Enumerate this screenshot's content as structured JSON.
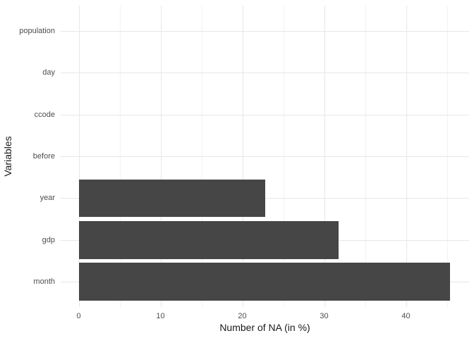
{
  "chart_data": {
    "type": "bar",
    "orientation": "horizontal",
    "title": "",
    "xlabel": "Number of NA (in %)",
    "ylabel": "Variables",
    "categories": [
      "population",
      "day",
      "ccode",
      "before",
      "year",
      "gdp",
      "month"
    ],
    "values": [
      0,
      0,
      0,
      0,
      22.8,
      31.8,
      45.4
    ],
    "x_ticks": [
      0,
      10,
      20,
      30,
      40
    ],
    "x_minor_ticks": [
      5,
      15,
      25,
      35,
      45
    ],
    "xlim": [
      0,
      45.4
    ],
    "grid": "major and minor vertical, major horizontal per category",
    "legend": false,
    "colors": {
      "bar": "#464646",
      "grid_major": "#e7e7e7",
      "grid_minor": "#f2f2f2",
      "tick_label": "#4d4d4d",
      "axis_title": "#1a1a1a",
      "panel_background": "#ffffff"
    }
  }
}
